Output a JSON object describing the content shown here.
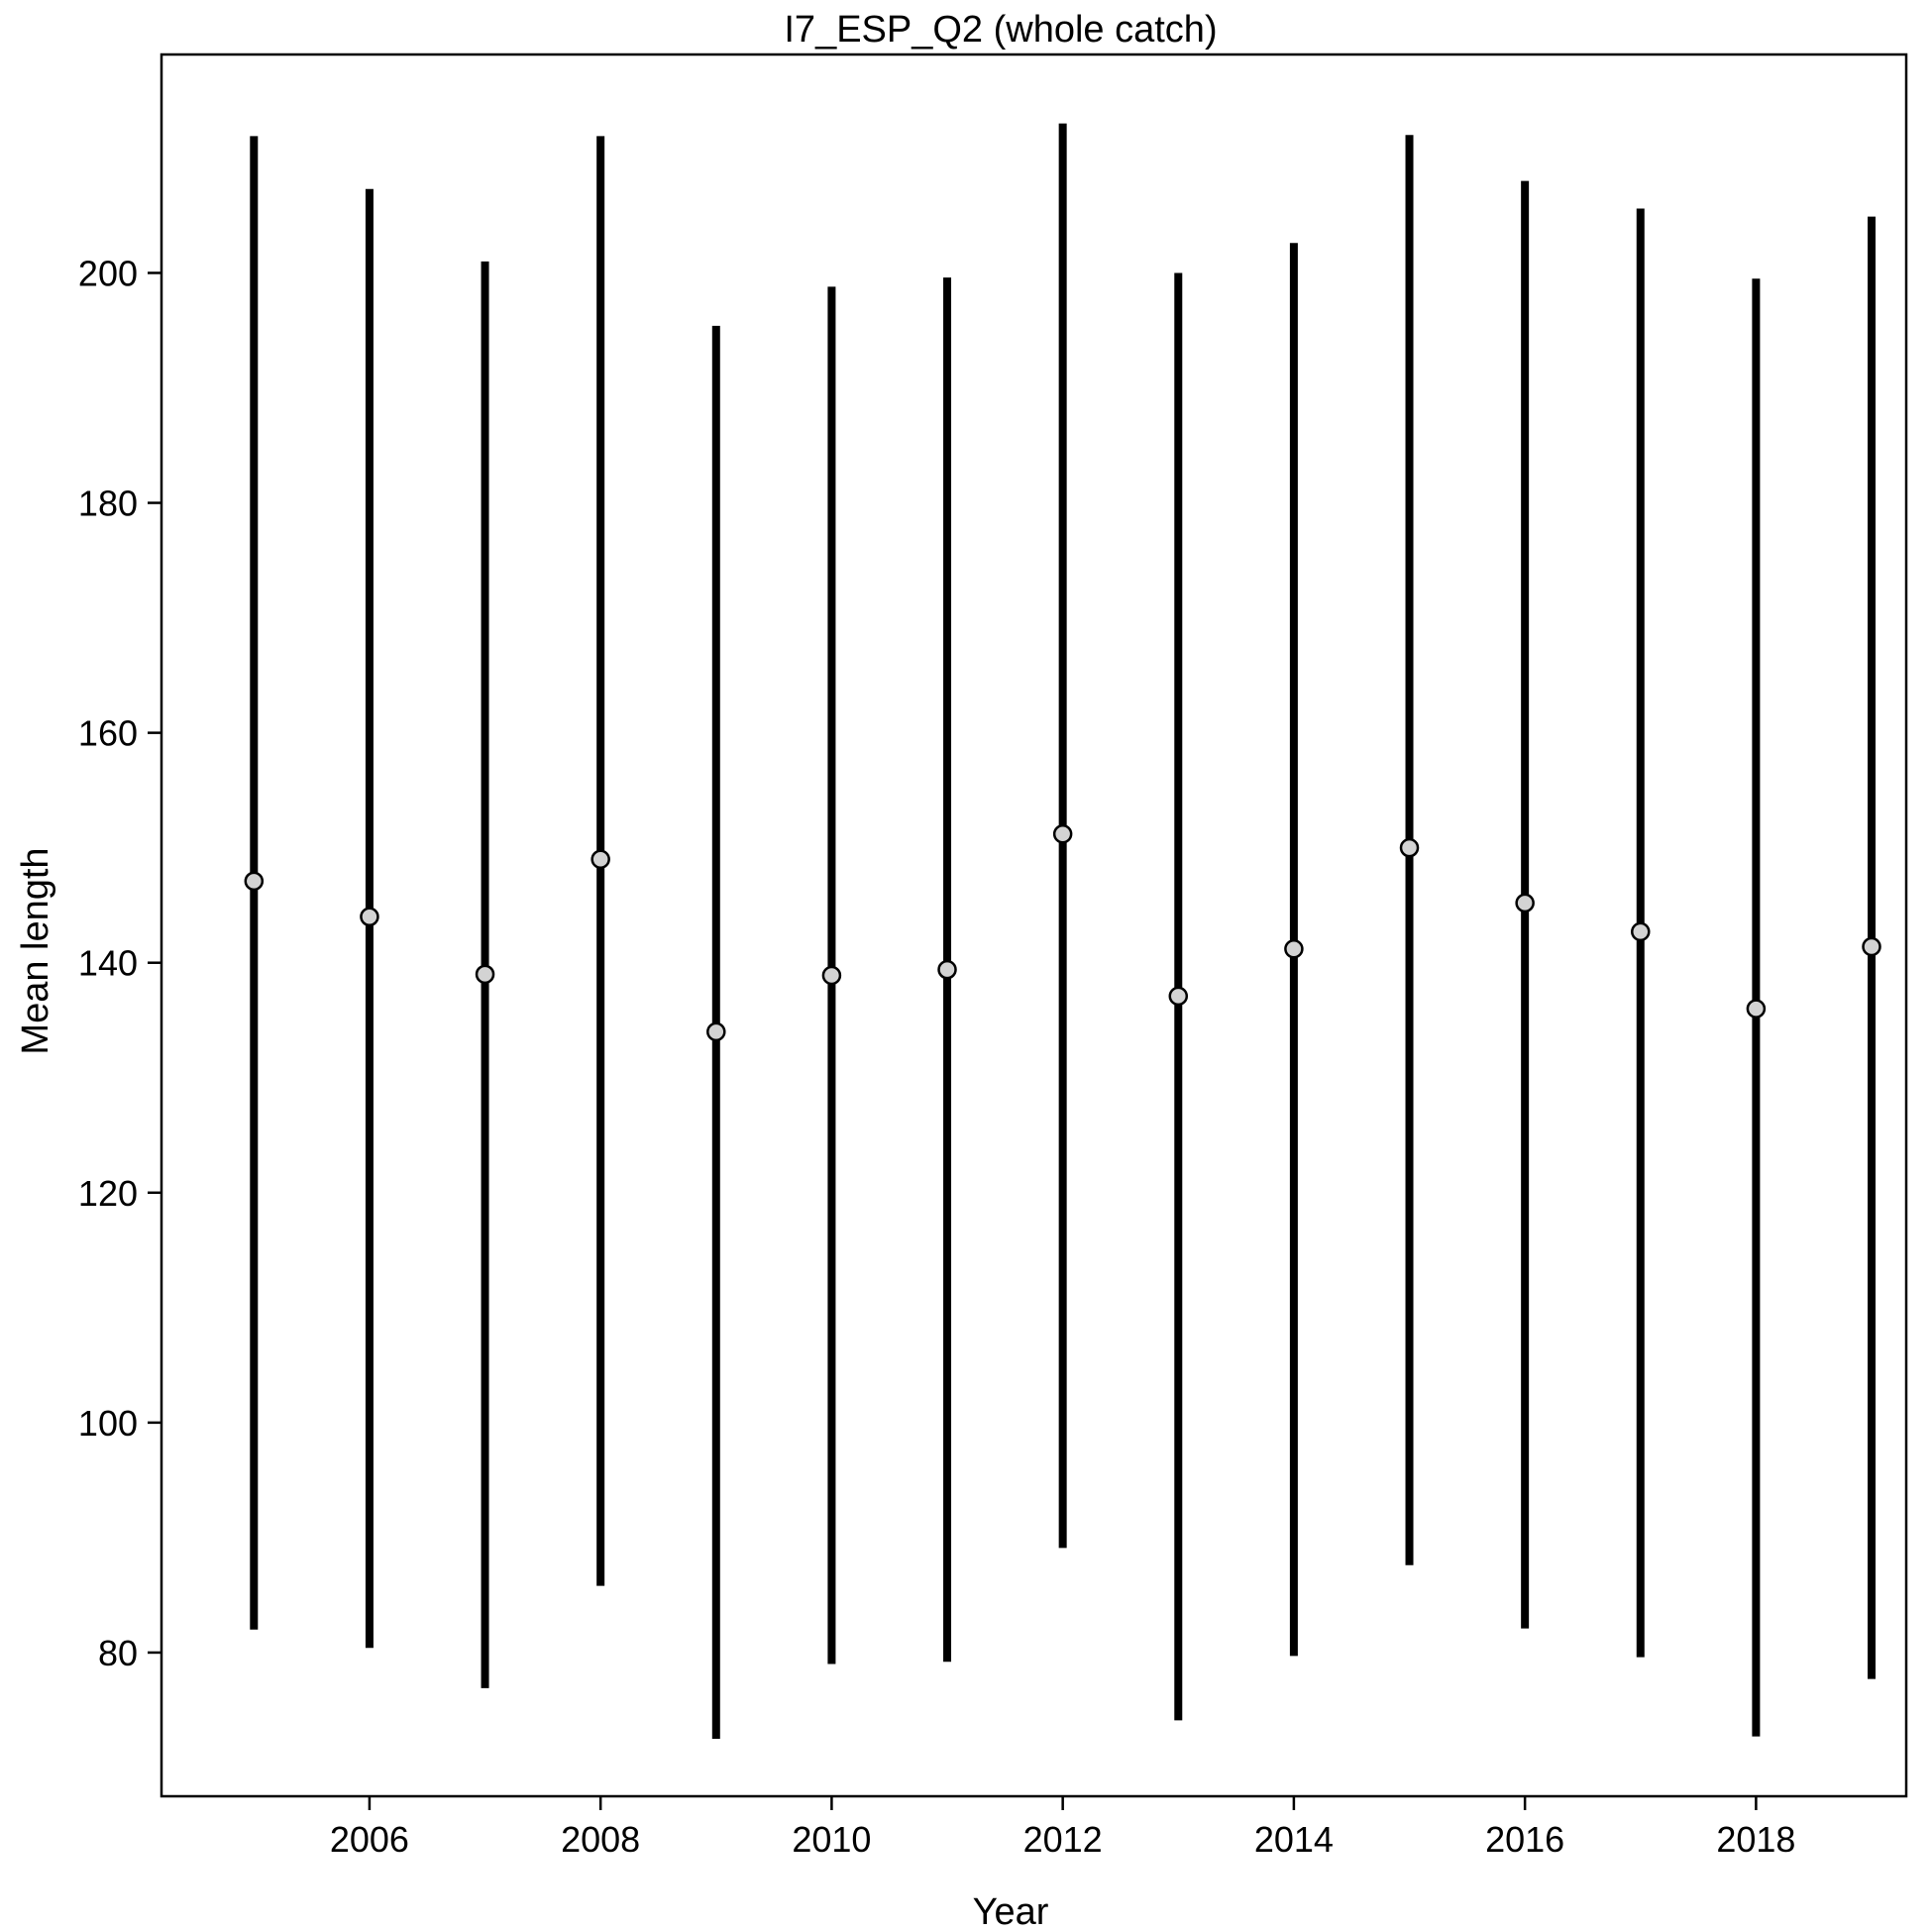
{
  "chart_data": {
    "type": "scatter",
    "title": "I7_ESP_Q2 (whole catch)",
    "xlabel": "Year",
    "ylabel": "Mean length",
    "xlim": [
      2004.2,
      2019.3
    ],
    "ylim": [
      67.5,
      219
    ],
    "x_ticks": [
      2006,
      2008,
      2010,
      2012,
      2014,
      2016,
      2018
    ],
    "y_ticks": [
      80,
      100,
      120,
      140,
      160,
      180,
      200
    ],
    "grid": false,
    "series": [
      {
        "points": [
          {
            "x": 2005,
            "y": 147.1,
            "low": 82.0,
            "high": 211.9
          },
          {
            "x": 2006,
            "y": 144.0,
            "low": 80.4,
            "high": 207.3
          },
          {
            "x": 2007,
            "y": 139.0,
            "low": 76.9,
            "high": 201.0
          },
          {
            "x": 2008,
            "y": 149.0,
            "low": 85.8,
            "high": 211.9
          },
          {
            "x": 2009,
            "y": 134.0,
            "low": 72.5,
            "high": 195.4
          },
          {
            "x": 2010,
            "y": 138.9,
            "low": 79.0,
            "high": 198.8
          },
          {
            "x": 2011,
            "y": 139.4,
            "low": 79.2,
            "high": 199.6
          },
          {
            "x": 2012,
            "y": 151.2,
            "low": 89.1,
            "high": 213.0
          },
          {
            "x": 2013,
            "y": 137.1,
            "low": 74.1,
            "high": 200.0
          },
          {
            "x": 2014,
            "y": 141.2,
            "low": 79.7,
            "high": 202.6
          },
          {
            "x": 2015,
            "y": 150.0,
            "low": 87.6,
            "high": 212.0
          },
          {
            "x": 2016,
            "y": 145.2,
            "low": 82.1,
            "high": 208.0
          },
          {
            "x": 2017,
            "y": 142.7,
            "low": 79.6,
            "high": 205.6
          },
          {
            "x": 2018,
            "y": 136.0,
            "low": 72.7,
            "high": 199.5
          },
          {
            "x": 2019,
            "y": 141.4,
            "low": 77.7,
            "high": 204.9
          }
        ]
      }
    ],
    "colors": {
      "whisker": "#000000",
      "marker_fill": "#d3d3d3",
      "marker_stroke": "#000000",
      "frame": "#000000"
    }
  }
}
